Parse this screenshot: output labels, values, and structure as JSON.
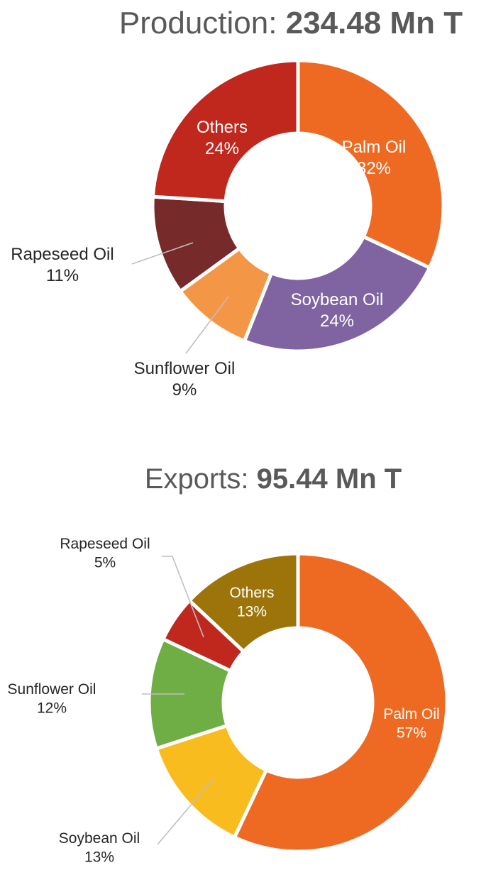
{
  "chart_data": [
    {
      "type": "pie",
      "title_prefix": "Production: ",
      "title_value": "234.48 Mn T",
      "slices": [
        {
          "label": "Palm Oil",
          "pct": "32%",
          "value": 32,
          "color": "#EE6A22"
        },
        {
          "label": "Soybean Oil",
          "pct": "24%",
          "value": 24,
          "color": "#8064A2"
        },
        {
          "label": "Sunflower Oil",
          "pct": "9%",
          "value": 9,
          "color": "#F39646"
        },
        {
          "label": "Rapeseed Oil",
          "pct": "11%",
          "value": 11,
          "color": "#772A2A"
        },
        {
          "label": "Others",
          "pct": "24%",
          "value": 24,
          "color": "#C0271D"
        }
      ]
    },
    {
      "type": "pie",
      "title_prefix": "Exports: ",
      "title_value": "95.44 Mn T",
      "slices": [
        {
          "label": "Palm Oil",
          "pct": "57%",
          "value": 57,
          "color": "#EE6A22"
        },
        {
          "label": "Soybean Oil",
          "pct": "13%",
          "value": 13,
          "color": "#F9BC1E"
        },
        {
          "label": "Sunflower Oil",
          "pct": "12%",
          "value": 12,
          "color": "#6FAE45"
        },
        {
          "label": "Rapeseed Oil",
          "pct": "5%",
          "value": 5,
          "color": "#C0271D"
        },
        {
          "label": "Others",
          "pct": "13%",
          "value": 13,
          "color": "#9C7409"
        }
      ]
    }
  ]
}
